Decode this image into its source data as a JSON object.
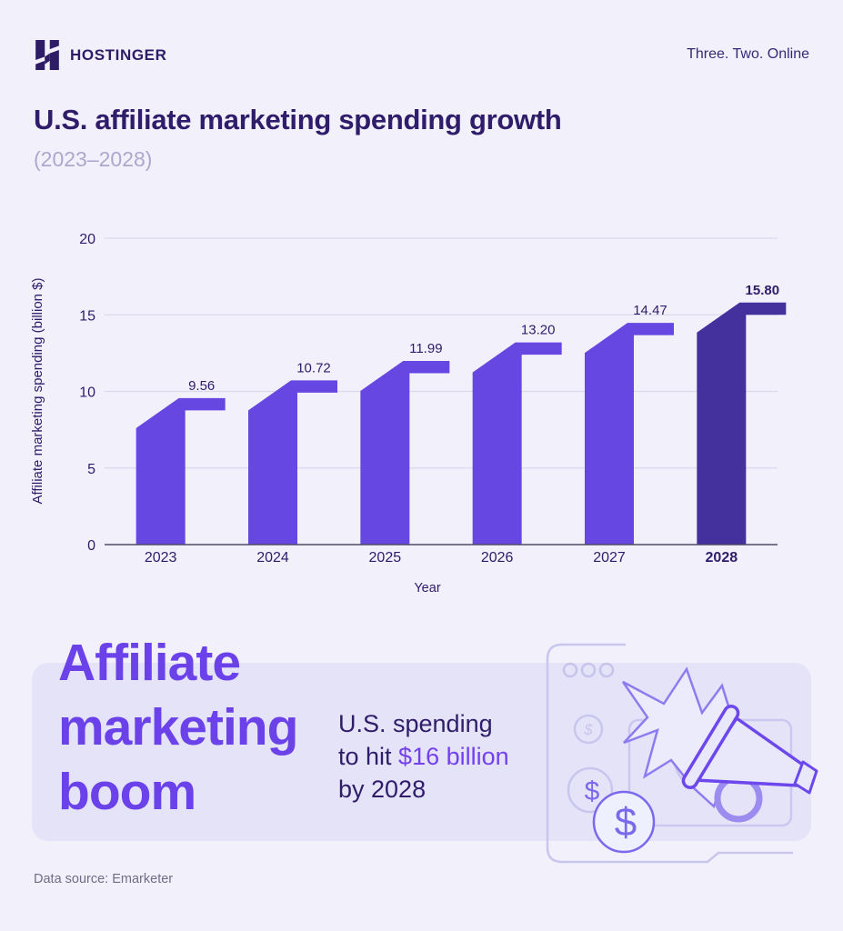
{
  "header": {
    "brand": "HOSTINGER",
    "tagline": "Three. Two. Online"
  },
  "title": "U.S. affiliate marketing spending growth",
  "subtitle": "(2023–2028)",
  "chart_data": {
    "type": "bar",
    "title": "U.S. affiliate marketing spending growth (2023–2028)",
    "categories": [
      "2023",
      "2024",
      "2025",
      "2026",
      "2027",
      "2028"
    ],
    "values": [
      9.56,
      10.72,
      11.99,
      13.2,
      14.47,
      15.8
    ],
    "value_labels": [
      "9.56",
      "10.72",
      "11.99",
      "13.20",
      "14.47",
      "15.80"
    ],
    "xlabel": "Year",
    "ylabel": "Affiliate marketing spending (billion $)",
    "ylim": [
      0,
      20
    ],
    "yticks": [
      0,
      5,
      10,
      15,
      20
    ],
    "grid": true,
    "legend": "none",
    "highlight_category": "2028",
    "bar_color": "#6747e1",
    "highlight_color": "#45319e"
  },
  "callout": {
    "heading": "Affiliate marketing boom",
    "stat_line1": "U.S. spending",
    "stat_line2_prefix": "to hit ",
    "stat_line2_highlight": "$16 billion",
    "stat_line3": "by 2028",
    "accent_color": "#6b42e9"
  },
  "footer": {
    "source": "Data source: Emarketer"
  }
}
